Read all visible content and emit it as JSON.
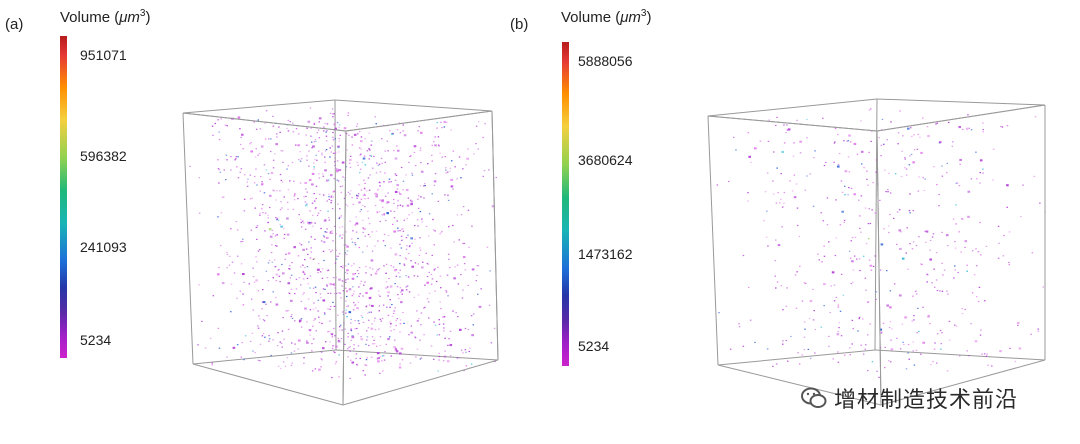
{
  "panel_a": {
    "label": "(a)",
    "colorbar": {
      "title": "Volume (",
      "unit": "μm",
      "exponent": "3",
      "close": ")",
      "ticks": [
        "951071",
        "596382",
        "241093",
        "5234"
      ]
    },
    "density": 1.0
  },
  "panel_b": {
    "label": "(b)",
    "colorbar": {
      "title": "Volume (",
      "unit": "μm",
      "exponent": "3",
      "close": ")",
      "ticks": [
        "5888056",
        "3680624",
        "1473162",
        "5234"
      ]
    },
    "density": 0.42
  },
  "watermark": {
    "text": "增材制造技术前沿",
    "icon": "wechat-icon"
  },
  "colors": {
    "point_main": "#b33ad6",
    "point_pink": "#e070e8",
    "point_blue": "#2b5fd0",
    "point_cyan": "#29b6d6",
    "point_green": "#7ec83a",
    "cube_edge": "#999999"
  }
}
